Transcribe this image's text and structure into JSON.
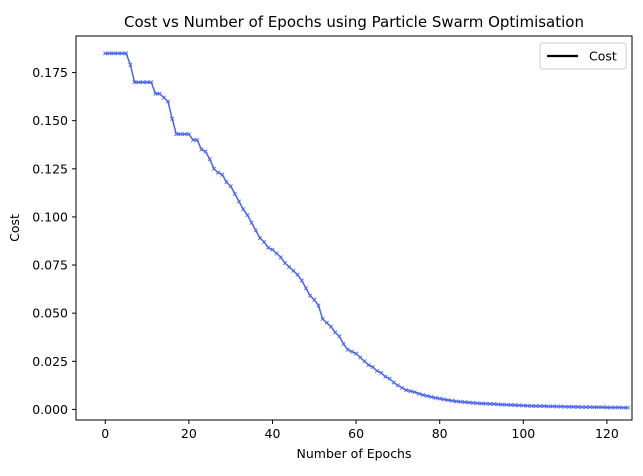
{
  "chart_data": {
    "type": "line",
    "title": "Cost vs Number of Epochs using Particle Swarm Optimisation",
    "xlabel": "Number of Epochs",
    "ylabel": "Cost",
    "xlim": [
      -7,
      126
    ],
    "ylim": [
      -0.0055,
      0.194
    ],
    "xticks": [
      0,
      20,
      40,
      60,
      80,
      100,
      120
    ],
    "xtick_labels": [
      "0",
      "20",
      "40",
      "60",
      "80",
      "100",
      "120"
    ],
    "yticks": [
      0,
      0.025,
      0.05,
      0.075,
      0.1,
      0.125,
      0.15,
      0.175
    ],
    "ytick_labels": [
      "0.000",
      "0.025",
      "0.050",
      "0.075",
      "0.100",
      "0.125",
      "0.150",
      "0.175"
    ],
    "grid": false,
    "legend": {
      "placement": "top-right",
      "entries": [
        {
          "label": "Cost",
          "color": "#000000"
        }
      ]
    },
    "series": [
      {
        "name": "Cost",
        "color": "#4a64f0",
        "marker": "x",
        "x": [
          0,
          1,
          2,
          3,
          4,
          5,
          6,
          7,
          8,
          9,
          10,
          11,
          12,
          13,
          14,
          15,
          16,
          17,
          18,
          19,
          20,
          21,
          22,
          23,
          24,
          25,
          26,
          27,
          28,
          29,
          30,
          31,
          32,
          33,
          34,
          35,
          36,
          37,
          38,
          39,
          40,
          41,
          42,
          43,
          44,
          45,
          46,
          47,
          48,
          49,
          50,
          51,
          52,
          53,
          54,
          55,
          56,
          57,
          58,
          59,
          60,
          61,
          62,
          63,
          64,
          65,
          66,
          67,
          68,
          69,
          70,
          71,
          72,
          73,
          74,
          75,
          76,
          77,
          78,
          79,
          80,
          81,
          82,
          83,
          84,
          85,
          86,
          87,
          88,
          89,
          90,
          91,
          92,
          93,
          94,
          95,
          96,
          97,
          98,
          99,
          100,
          101,
          102,
          103,
          104,
          105,
          106,
          107,
          108,
          109,
          110,
          111,
          112,
          113,
          114,
          115,
          116,
          117,
          118,
          119,
          120,
          121,
          122,
          123,
          124,
          125
        ],
        "y": [
          0.185,
          0.185,
          0.185,
          0.185,
          0.185,
          0.185,
          0.179,
          0.17,
          0.17,
          0.17,
          0.17,
          0.17,
          0.164,
          0.164,
          0.162,
          0.16,
          0.151,
          0.143,
          0.143,
          0.143,
          0.143,
          0.14,
          0.14,
          0.135,
          0.134,
          0.13,
          0.125,
          0.123,
          0.122,
          0.118,
          0.116,
          0.112,
          0.108,
          0.104,
          0.101,
          0.097,
          0.093,
          0.089,
          0.087,
          0.084,
          0.083,
          0.081,
          0.079,
          0.076,
          0.074,
          0.072,
          0.07,
          0.067,
          0.063,
          0.059,
          0.057,
          0.054,
          0.047,
          0.045,
          0.043,
          0.04,
          0.038,
          0.034,
          0.031,
          0.03,
          0.029,
          0.027,
          0.025,
          0.023,
          0.022,
          0.02,
          0.019,
          0.017,
          0.016,
          0.014,
          0.0125,
          0.0112,
          0.01,
          0.0095,
          0.009,
          0.0082,
          0.0075,
          0.007,
          0.0065,
          0.006,
          0.0056,
          0.0052,
          0.0048,
          0.0045,
          0.0042,
          0.004,
          0.0038,
          0.0036,
          0.0034,
          0.0032,
          0.0031,
          0.003,
          0.0029,
          0.0028,
          0.0026,
          0.0025,
          0.0024,
          0.0023,
          0.0022,
          0.0021,
          0.002,
          0.0019,
          0.0018,
          0.0018,
          0.0017,
          0.0017,
          0.0016,
          0.0016,
          0.0015,
          0.0015,
          0.0014,
          0.0014,
          0.0013,
          0.0013,
          0.0012,
          0.0012,
          0.0012,
          0.0011,
          0.0011,
          0.0011,
          0.001,
          0.001,
          0.001,
          0.001,
          0.0009,
          0.0009
        ]
      }
    ]
  }
}
